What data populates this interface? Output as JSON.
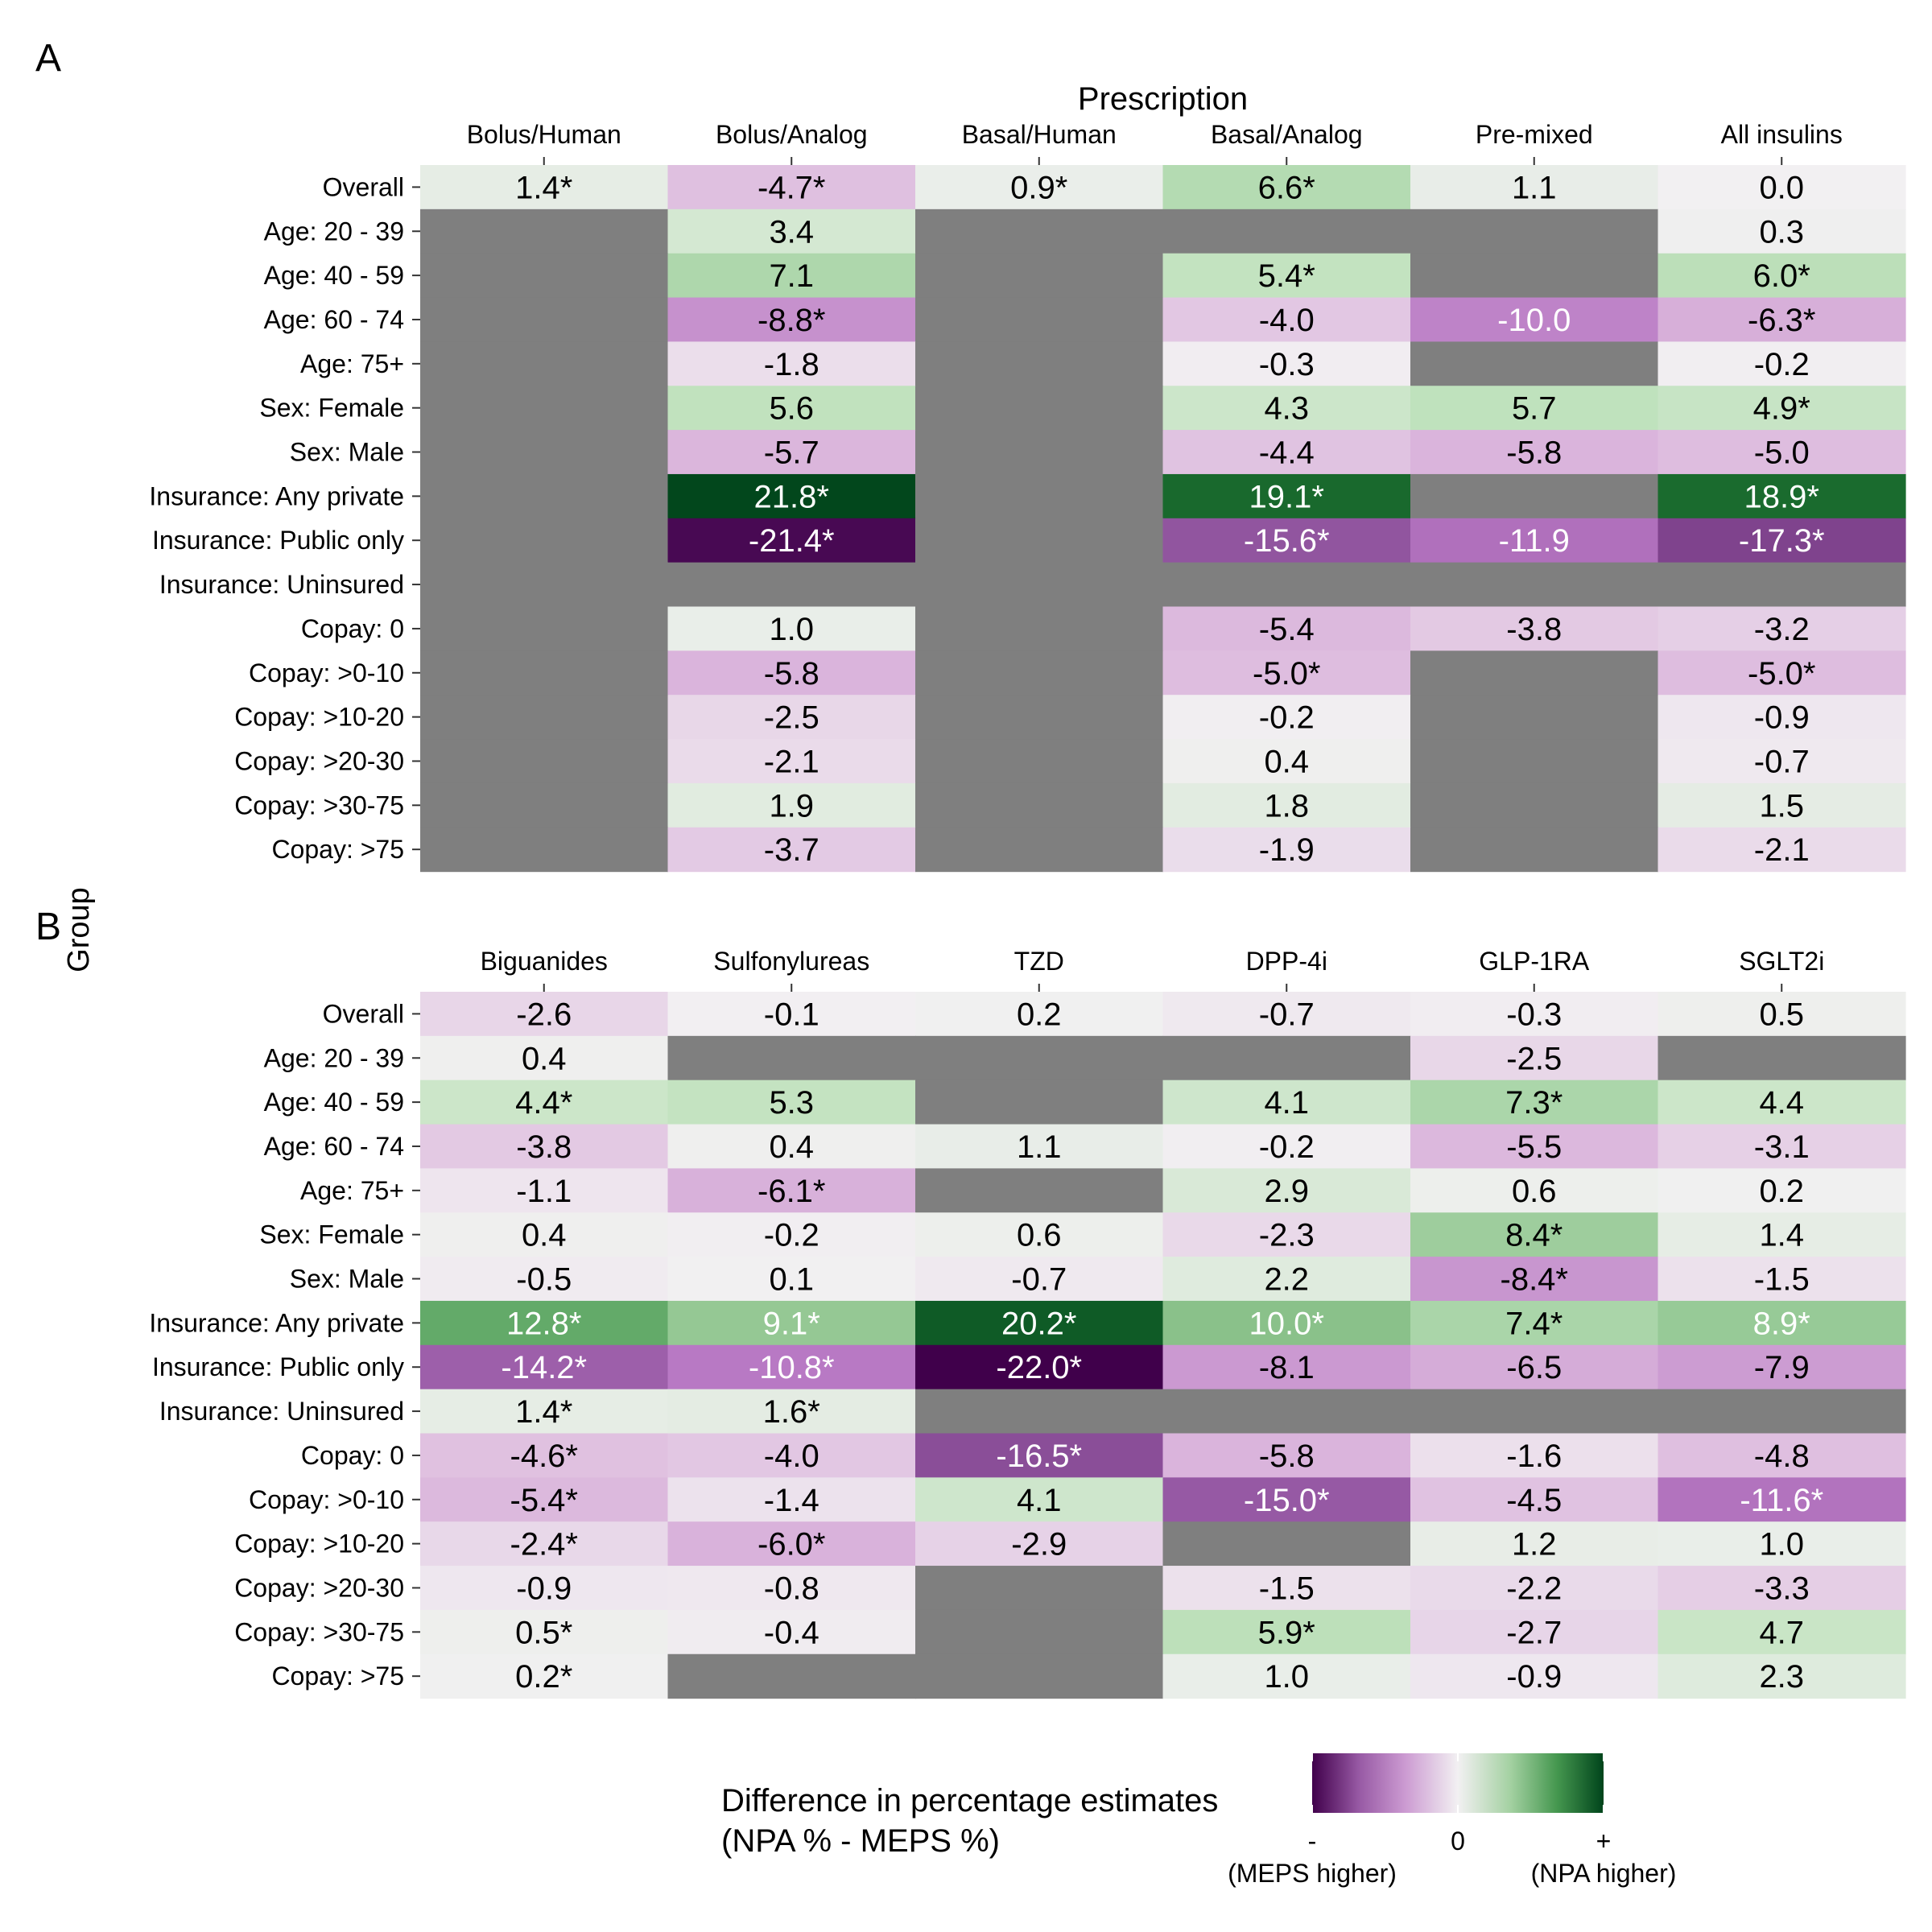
{
  "chart_data": {
    "type": "heatmap",
    "ylabel": "Group",
    "groups": [
      "Overall",
      "Age: 20 - 39",
      "Age: 40 - 59",
      "Age: 60 - 74",
      "Age: 75+",
      "Sex: Female",
      "Sex: Male",
      "Insurance: Any private",
      "Insurance: Public only",
      "Insurance: Uninsured",
      "Copay: 0",
      "Copay: >0-10",
      "Copay: >10-20",
      "Copay: >20-30",
      "Copay: >30-75",
      "Copay: >75"
    ],
    "panels": [
      {
        "tag": "A",
        "title": "Prescription",
        "columns": [
          "Bolus/Human",
          "Bolus/Analog",
          "Basal/Human",
          "Basal/Analog",
          "Pre-mixed",
          "All insulins"
        ],
        "values": [
          [
            1.4,
            -4.7,
            0.9,
            6.6,
            1.1,
            0.0
          ],
          [
            null,
            3.4,
            null,
            null,
            null,
            0.3
          ],
          [
            null,
            7.1,
            null,
            5.4,
            null,
            6.0
          ],
          [
            null,
            -8.8,
            null,
            -4.0,
            -10.0,
            -6.3
          ],
          [
            null,
            -1.8,
            null,
            -0.3,
            null,
            -0.2
          ],
          [
            null,
            5.6,
            null,
            4.3,
            5.7,
            4.9
          ],
          [
            null,
            -5.7,
            null,
            -4.4,
            -5.8,
            -5.0
          ],
          [
            null,
            21.8,
            null,
            19.1,
            null,
            18.9
          ],
          [
            null,
            -21.4,
            null,
            -15.6,
            -11.9,
            -17.3
          ],
          [
            null,
            null,
            null,
            null,
            null,
            null
          ],
          [
            null,
            1.0,
            null,
            -5.4,
            -3.8,
            -3.2
          ],
          [
            null,
            -5.8,
            null,
            -5.0,
            null,
            -5.0
          ],
          [
            null,
            -2.5,
            null,
            -0.2,
            null,
            -0.9
          ],
          [
            null,
            -2.1,
            null,
            0.4,
            null,
            -0.7
          ],
          [
            null,
            1.9,
            null,
            1.8,
            null,
            1.5
          ],
          [
            null,
            -3.7,
            null,
            -1.9,
            null,
            -2.1
          ]
        ],
        "significant": [
          [
            true,
            true,
            true,
            true,
            false,
            false
          ],
          [
            false,
            false,
            false,
            false,
            false,
            false
          ],
          [
            false,
            false,
            false,
            true,
            false,
            true
          ],
          [
            false,
            true,
            false,
            false,
            false,
            true
          ],
          [
            false,
            false,
            false,
            false,
            false,
            false
          ],
          [
            false,
            false,
            false,
            false,
            false,
            true
          ],
          [
            false,
            false,
            false,
            false,
            false,
            false
          ],
          [
            false,
            true,
            false,
            true,
            false,
            true
          ],
          [
            false,
            true,
            false,
            true,
            false,
            true
          ],
          [
            false,
            false,
            false,
            false,
            false,
            false
          ],
          [
            false,
            false,
            false,
            false,
            false,
            false
          ],
          [
            false,
            false,
            false,
            true,
            false,
            true
          ],
          [
            false,
            false,
            false,
            false,
            false,
            false
          ],
          [
            false,
            false,
            false,
            false,
            false,
            false
          ],
          [
            false,
            false,
            false,
            false,
            false,
            false
          ],
          [
            false,
            false,
            false,
            false,
            false,
            false
          ]
        ]
      },
      {
        "tag": "B",
        "title": "",
        "columns": [
          "Biguanides",
          "Sulfonylureas",
          "TZD",
          "DPP-4i",
          "GLP-1RA",
          "SGLT2i"
        ],
        "values": [
          [
            -2.6,
            -0.1,
            0.2,
            -0.7,
            -0.3,
            0.5
          ],
          [
            0.4,
            null,
            null,
            null,
            -2.5,
            null
          ],
          [
            4.4,
            5.3,
            null,
            4.1,
            7.3,
            4.4
          ],
          [
            -3.8,
            0.4,
            1.1,
            -0.2,
            -5.5,
            -3.1
          ],
          [
            -1.1,
            -6.1,
            null,
            2.9,
            0.6,
            0.2
          ],
          [
            0.4,
            -0.2,
            0.6,
            -2.3,
            8.4,
            1.4
          ],
          [
            -0.5,
            0.1,
            -0.7,
            2.2,
            -8.4,
            -1.5
          ],
          [
            12.8,
            9.1,
            20.2,
            10.0,
            7.4,
            8.9
          ],
          [
            -14.2,
            -10.8,
            -22.0,
            -8.1,
            -6.5,
            -7.9
          ],
          [
            1.4,
            1.6,
            null,
            null,
            null,
            null
          ],
          [
            -4.6,
            -4.0,
            -16.5,
            -5.8,
            -1.6,
            -4.8
          ],
          [
            -5.4,
            -1.4,
            4.1,
            -15.0,
            -4.5,
            -11.6
          ],
          [
            -2.4,
            -6.0,
            -2.9,
            null,
            1.2,
            1.0
          ],
          [
            -0.9,
            -0.8,
            null,
            -1.5,
            -2.2,
            -3.3
          ],
          [
            0.5,
            -0.4,
            null,
            5.9,
            -2.7,
            4.7
          ],
          [
            0.2,
            null,
            null,
            1.0,
            -0.9,
            2.3
          ]
        ],
        "significant": [
          [
            false,
            false,
            false,
            false,
            false,
            false
          ],
          [
            false,
            false,
            false,
            false,
            false,
            false
          ],
          [
            true,
            false,
            false,
            false,
            true,
            false
          ],
          [
            false,
            false,
            false,
            false,
            false,
            false
          ],
          [
            false,
            true,
            false,
            false,
            false,
            false
          ],
          [
            false,
            false,
            false,
            false,
            true,
            false
          ],
          [
            false,
            false,
            false,
            false,
            true,
            false
          ],
          [
            true,
            true,
            true,
            true,
            true,
            true
          ],
          [
            true,
            true,
            true,
            false,
            false,
            false
          ],
          [
            true,
            true,
            false,
            false,
            false,
            false
          ],
          [
            true,
            false,
            true,
            false,
            false,
            false
          ],
          [
            true,
            false,
            false,
            true,
            false,
            true
          ],
          [
            true,
            true,
            false,
            false,
            false,
            false
          ],
          [
            false,
            false,
            false,
            false,
            false,
            false
          ],
          [
            true,
            false,
            false,
            true,
            false,
            false
          ],
          [
            true,
            false,
            false,
            false,
            false,
            false
          ]
        ]
      }
    ],
    "legend": {
      "title_line1": "Difference in percentage estimates",
      "title_line2": "(NPA % - MEPS %)",
      "tick_low": "-",
      "tick_mid": "0",
      "tick_high": "+",
      "label_low": "(MEPS higher)",
      "label_high": "(NPA higher)",
      "colors": {
        "low": "#40004b",
        "mid": "#f2f0f2",
        "high": "#00441b",
        "missing": "#7f7f7f"
      },
      "limit": 22
    }
  }
}
